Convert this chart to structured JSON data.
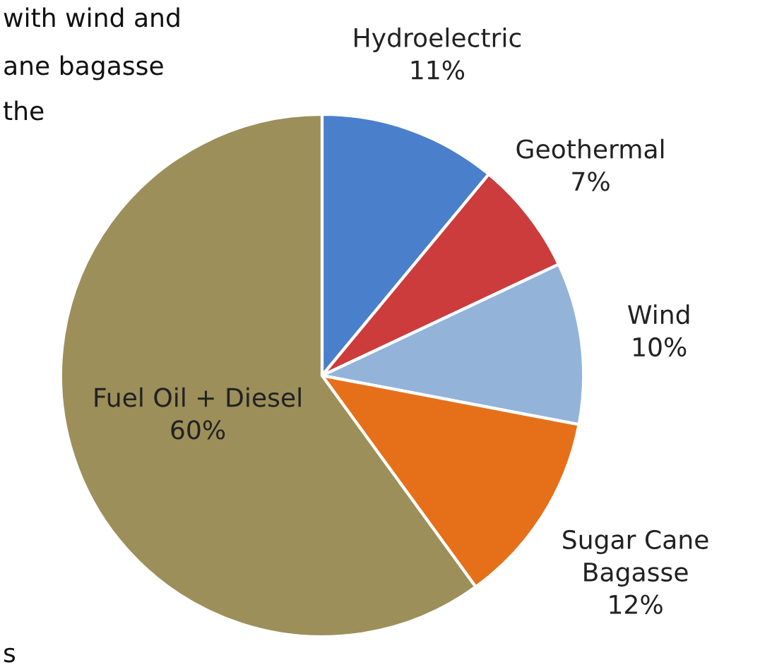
{
  "chart_data": {
    "type": "pie",
    "categories": [
      "Hydroelectric",
      "Geothermal",
      "Wind",
      "Sugar Cane\nBagasse",
      "Fuel Oil + Diesel"
    ],
    "values": [
      11,
      7,
      10,
      12,
      60
    ],
    "value_labels": [
      "11%",
      "7%",
      "10%",
      "12%",
      "60%"
    ],
    "colors": [
      "#4a7fcc",
      "#cc3c3c",
      "#94b3d9",
      "#e6701a",
      "#9c8f5a"
    ],
    "legend": false,
    "annotations": [
      "with wind and",
      "ane bagasse",
      "the",
      "s"
    ]
  }
}
